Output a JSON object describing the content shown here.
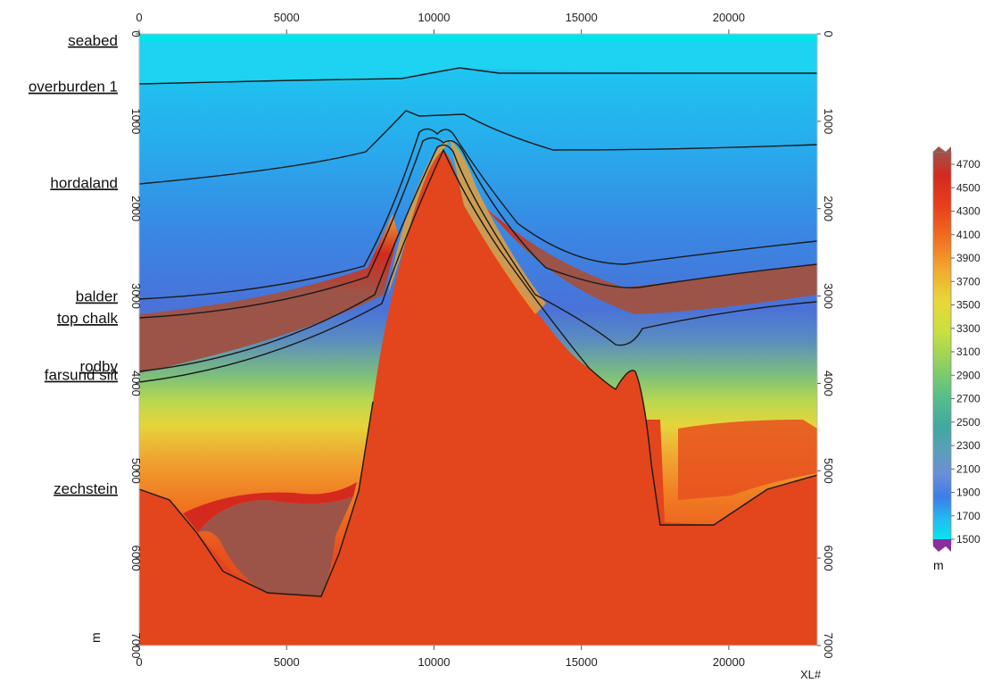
{
  "chart_data": {
    "type": "heatmap",
    "description_type": "velocity cross-section",
    "x_ticks": [
      "0",
      "5000",
      "10000",
      "15000",
      "20000"
    ],
    "x_tick_values": [
      0,
      5000,
      10000,
      15000,
      20000
    ],
    "x_range": [
      0,
      23000
    ],
    "x_unit": "XL#",
    "depth_ticks": [
      "0",
      "1000",
      "2000",
      "3000",
      "4000",
      "5000",
      "6000",
      "7000"
    ],
    "depth_tick_values": [
      0,
      1000,
      2000,
      3000,
      4000,
      5000,
      6000,
      7000
    ],
    "depth_range": [
      0,
      7000
    ],
    "depth_unit": "m",
    "horizons": [
      {
        "name": "seabed",
        "depth": 70
      },
      {
        "name": "overburden 1",
        "depth": 600
      },
      {
        "name": "hordaland",
        "depth": 1700
      },
      {
        "name": "balder",
        "depth": 3000
      },
      {
        "name": "top chalk",
        "depth": 3250
      },
      {
        "name": "rodby",
        "depth": 3800
      },
      {
        "name": "farsund silt",
        "depth": 3900
      },
      {
        "name": "zechstein",
        "depth": 5200
      }
    ],
    "colorbar": {
      "labels": [
        "4700",
        "4500",
        "4300",
        "4100",
        "3900",
        "3700",
        "3500",
        "3300",
        "3100",
        "2900",
        "2700",
        "2500",
        "2300",
        "2100",
        "1900",
        "1700",
        "1500"
      ],
      "values": [
        4700,
        4500,
        4300,
        4100,
        3900,
        3700,
        3500,
        3300,
        3100,
        2900,
        2700,
        2500,
        2300,
        2100,
        1900,
        1700,
        1500
      ],
      "colors": [
        "#a0524a",
        "#d42a1e",
        "#e8401c",
        "#f07020",
        "#f2a830",
        "#e8d838",
        "#c8e040",
        "#90d060",
        "#58c088",
        "#40a8a0",
        "#5aa0b8",
        "#6a8ed8",
        "#5a78e0",
        "#3c7ee8",
        "#20a8f0",
        "#18d0f0",
        "#00f0f0"
      ],
      "unit": "m",
      "low_color": "#8a2ea0"
    },
    "palette": {
      "water": "#1fbaf0",
      "shallow": "#3c9ee8",
      "mid": "#4a7fe0",
      "salt": "#e3451c",
      "brown": "#9c5448",
      "red": "#d62a1e",
      "orange": "#f0701e",
      "yellow": "#e8d23a",
      "green": "#74c96a",
      "teal": "#3ea8a0"
    }
  }
}
